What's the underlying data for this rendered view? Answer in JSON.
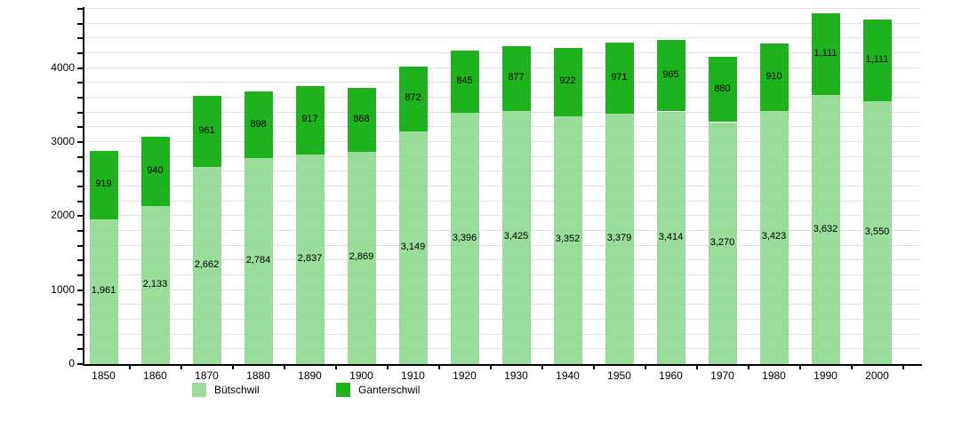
{
  "chart_data": {
    "type": "bar",
    "stacked": true,
    "title": "",
    "xlabel": "",
    "ylabel": "",
    "categories": [
      "1850",
      "1860",
      "1870",
      "1880",
      "1890",
      "1900",
      "1910",
      "1920",
      "1930",
      "1940",
      "1950",
      "1960",
      "1970",
      "1980",
      "1990",
      "2000"
    ],
    "series": [
      {
        "name": "Bütschwil",
        "color": "#8fd98f",
        "values": [
          1961,
          2133,
          2662,
          2784,
          2837,
          2869,
          3149,
          3396,
          3425,
          3352,
          3379,
          3414,
          3270,
          3423,
          3632,
          3550
        ]
      },
      {
        "name": "Ganterschwil",
        "color": "#06aa06",
        "values": [
          919,
          940,
          961,
          898,
          917,
          868,
          872,
          845,
          877,
          922,
          971,
          965,
          880,
          910,
          1111,
          1111
        ]
      }
    ],
    "totals": [
      2880,
      3073,
      3623,
      3682,
      3754,
      3737,
      4021,
      4241,
      4302,
      4274,
      4350,
      4379,
      4150,
      4333,
      4743,
      4661
    ],
    "ylim": [
      0,
      4800
    ],
    "yticks": [
      0,
      1000,
      2000,
      3000,
      4000
    ],
    "minor_tick_step": 200,
    "grid": true,
    "value_labels": "inside-center, thousands comma format",
    "legend_position": "bottom",
    "background_color": "#ffffff",
    "gridline_color": "#e2e2e2",
    "axis_color": "#000000"
  }
}
